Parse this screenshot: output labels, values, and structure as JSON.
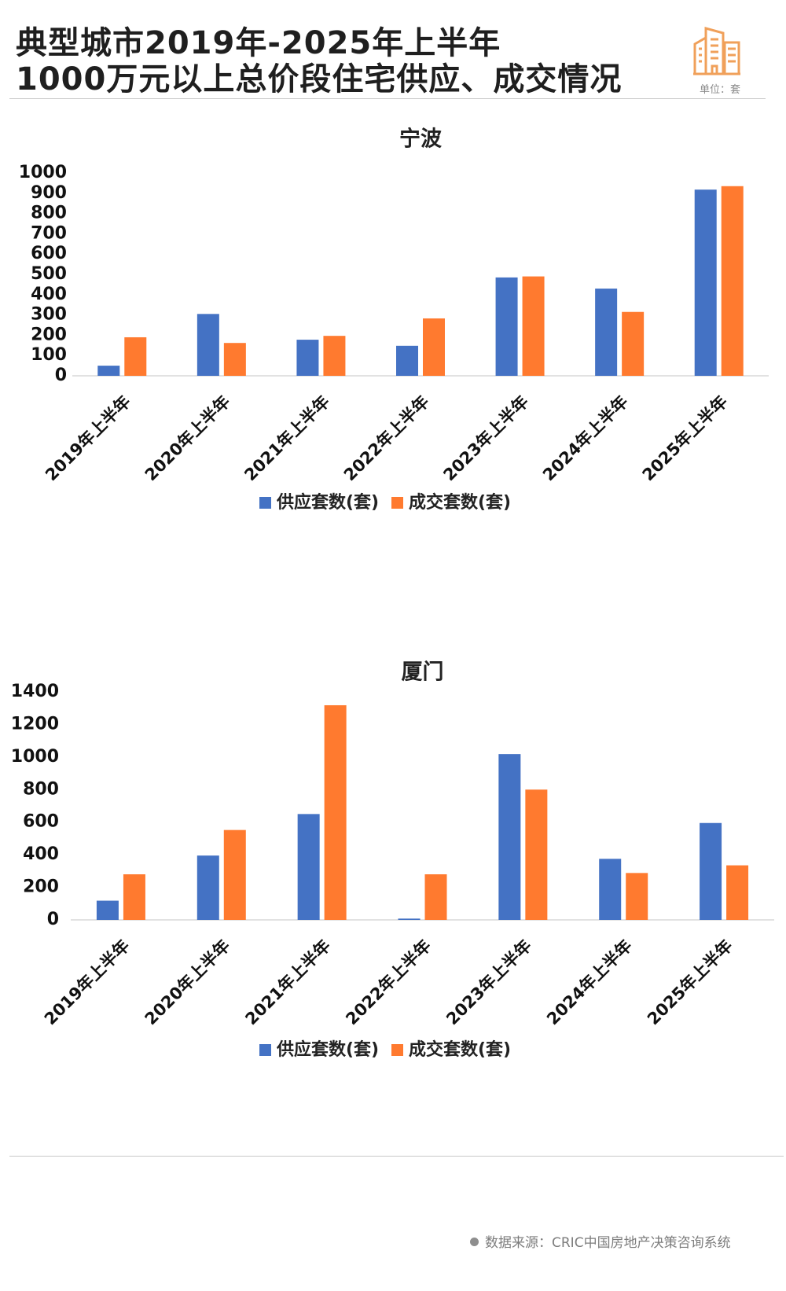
{
  "header": {
    "title_line1": "典型城市2019年-2025年上半年",
    "title_line2": "1000万元以上总价段住宅供应、成交情况",
    "unit": "单位：套",
    "logo_icon": "building-icon"
  },
  "colors": {
    "supply": "#4472C4",
    "deal": "#FF7A2F",
    "logo": "#F0A05A",
    "gridline": "#d9d9d9"
  },
  "chart_data": [
    {
      "type": "bar",
      "title": "宁波",
      "categories": [
        "2019年上半年",
        "2020年上半年",
        "2021年上半年",
        "2022年上半年",
        "2023年上半年",
        "2024年上半年",
        "2025年上半年"
      ],
      "series": [
        {
          "name": "供应套数(套)",
          "values": [
            50,
            305,
            178,
            148,
            485,
            430,
            918
          ]
        },
        {
          "name": "成交套数(套)",
          "values": [
            190,
            162,
            197,
            283,
            490,
            315,
            935
          ]
        }
      ],
      "ylim": [
        0,
        1000
      ],
      "yticks": [
        "0",
        "100",
        "200",
        "300",
        "400",
        "500",
        "600",
        "700",
        "800",
        "900",
        "1000"
      ],
      "grid": false,
      "legend_position": "bottom"
    },
    {
      "type": "bar",
      "title": "厦门",
      "categories": [
        "2019年上半年",
        "2020年上半年",
        "2021年上半年",
        "2022年上半年",
        "2023年上半年",
        "2024年上半年",
        "2025年上半年"
      ],
      "series": [
        {
          "name": "供应套数(套)",
          "values": [
            118,
            395,
            650,
            8,
            1018,
            375,
            595
          ]
        },
        {
          "name": "成交套数(套)",
          "values": [
            280,
            552,
            1318,
            280,
            800,
            288,
            335
          ]
        }
      ],
      "ylim": [
        0,
        1400
      ],
      "yticks": [
        "0",
        "200",
        "400",
        "600",
        "800",
        "1000",
        "1200",
        "1400"
      ],
      "grid": false,
      "legend_position": "bottom"
    }
  ],
  "footer": {
    "source": "数据来源：CRIC中国房地产决策咨询系统"
  }
}
